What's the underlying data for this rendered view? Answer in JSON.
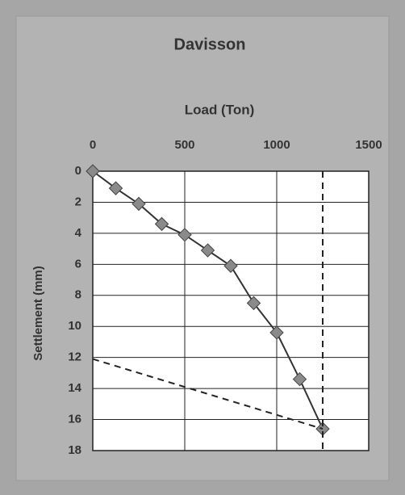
{
  "chart_data": {
    "type": "line",
    "title": "Davisson",
    "x_label": "Load (Ton)",
    "y_label": "Settlement (mm)",
    "x_axis_position": "top",
    "y_inverted": true,
    "grid": true,
    "xlim": [
      0,
      1500
    ],
    "xticks": [
      0,
      500,
      1000,
      1500
    ],
    "ylim": [
      0,
      18
    ],
    "yticks": [
      0,
      2,
      4,
      6,
      8,
      10,
      12,
      14,
      16,
      18
    ],
    "series": [
      {
        "color": "#333333",
        "marker": "diamond",
        "marker_color": "#8a8a8a",
        "dashed": false,
        "x": [
          0,
          125,
          250,
          375,
          500,
          625,
          750,
          875,
          1000,
          1125,
          1250
        ],
        "values": [
          0,
          1.1,
          2.1,
          3.4,
          4.1,
          5.1,
          6.1,
          8.5,
          10.4,
          13.4,
          16.6
        ]
      },
      {
        "color": "#222222",
        "dashed": true,
        "x": [
          1250,
          1250
        ],
        "values": [
          0,
          18
        ]
      },
      {
        "color": "#222222",
        "dashed": true,
        "x": [
          0,
          1250
        ],
        "values": [
          12.1,
          16.6
        ]
      }
    ]
  }
}
